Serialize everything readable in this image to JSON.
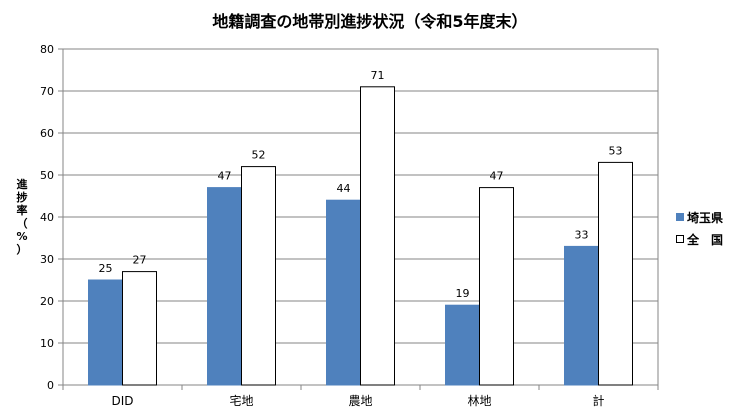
{
  "chart_data": {
    "type": "bar",
    "title": "地籍調査の地帯別進捗状況（令和5年度末）",
    "ylabel": "進捗率（%）",
    "categories": [
      "DID",
      "宅地",
      "農地",
      "林地",
      "計"
    ],
    "series": [
      {
        "name": "埼玉県",
        "color": "#4F81BD",
        "values": [
          25,
          47,
          44,
          19,
          33
        ]
      },
      {
        "name": "全　国",
        "color": "#FFFFFF",
        "values": [
          27,
          52,
          71,
          47,
          53
        ]
      }
    ],
    "ylim": [
      0,
      80
    ],
    "yticks": [
      0,
      10,
      20,
      30,
      40,
      50,
      60,
      70,
      80
    ],
    "grid": true,
    "legend_position": "right"
  }
}
